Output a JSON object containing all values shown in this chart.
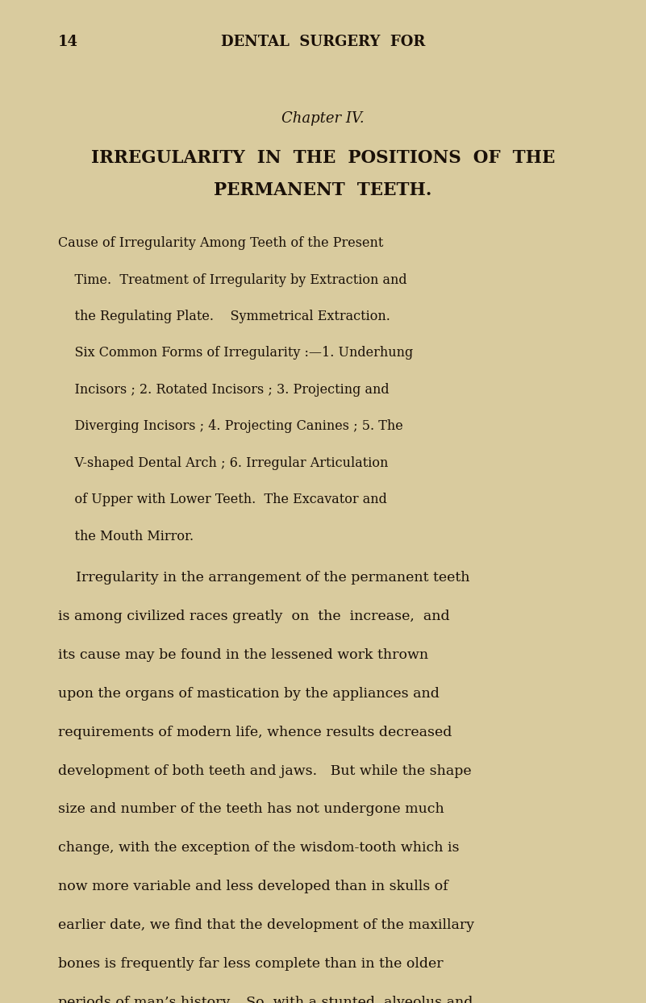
{
  "bg_color": "#d9cb9e",
  "text_color": "#1a1008",
  "page_width": 8.01,
  "page_height": 12.44,
  "header_page_num": "14",
  "header_title": "DENTAL  SURGERY  FOR",
  "chapter_label": "Chapter IV.",
  "chapter_title_line1": "IRREGULARITY  IN  THE  POSITIONS  OF  THE",
  "chapter_title_line2": "PERMANENT  TEETH.",
  "summary_text": "Cause of Irregularity Among Teeth of the Present\n    Time.  Treatment of Irregularity by Extraction and\n    the Regulating Plate.    Symmetrical Extraction.\n    Six Common Forms of Irregularity :—1. Underhung\n    Incisors ; 2. Rotated Incisors ; 3. Projecting and\n    Diverging Incisors ; 4. Projecting Canines ; 5. The\n    V-shaped Dental Arch ; 6. Irregular Articulation\n    of Upper with Lower Teeth.  The Excavator and\n    the Mouth Mirror.",
  "body_text": "    Irregularity in the arrangement of the permanent teeth\nis among civilized races greatly  on  the  increase,  and\nits cause may be found in the lessened work thrown\nupon the organs of mastication by the appliances and\nrequirements of modern life, whence results decreased\ndevelopment of both teeth and jaws.   But while the shape\nsize and number of the teeth has not undergone much\nchange, with the exception of the wisdom-tooth which is\nnow more variable and less developed than in skulls of\nearlier date, we find that the development of the maxillary\nbones is frequently far less complete than in the older\nperiods of man’s history.   So, with a stunted  alveolus and"
}
